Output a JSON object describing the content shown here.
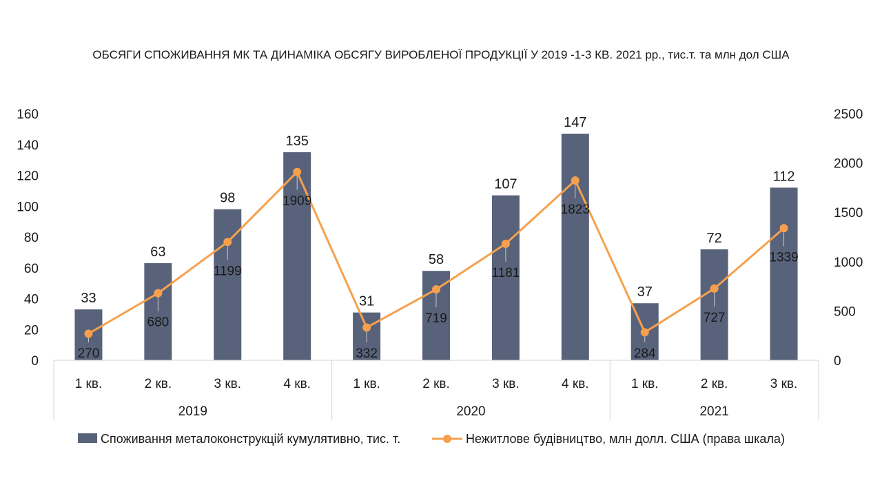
{
  "chart_data": {
    "type": "bar+line",
    "title": "ОБСЯГИ СПОЖИВАННЯ МК ТА ДИНАМІКА ОБСЯГУ ВИРОБЛЕНОЇ ПРОДУКЦІЇ У 2019 -1-3 КВ. 2021 рр., тис.т. та млн дол США",
    "categories": [
      "1 кв.",
      "2 кв.",
      "3 кв.",
      "4 кв.",
      "1 кв.",
      "2 кв.",
      "3 кв.",
      "4 кв.",
      "1 кв.",
      "2 кв.",
      "3 кв."
    ],
    "groups": [
      {
        "label": "2019",
        "count": 4
      },
      {
        "label": "2020",
        "count": 4
      },
      {
        "label": "2021",
        "count": 3
      }
    ],
    "series": [
      {
        "name": "Споживання металоконструкцій кумулятивно, тис. т.",
        "type": "bar",
        "axis": "left",
        "color": "#58627a",
        "values": [
          33,
          63,
          98,
          135,
          31,
          58,
          107,
          147,
          37,
          72,
          112
        ]
      },
      {
        "name": "Нежитлове будівництво, млн долл. США (права шкала)",
        "type": "line",
        "axis": "right",
        "color": "#f6a04d",
        "values": [
          270,
          680,
          1199,
          1909,
          332,
          719,
          1181,
          1823,
          284,
          727,
          1339
        ]
      }
    ],
    "y_left": {
      "min": 0,
      "max": 160,
      "ticks": [
        "0",
        "20",
        "40",
        "60",
        "80",
        "100",
        "120",
        "140",
        "160"
      ]
    },
    "y_right": {
      "min": 0,
      "max": 2500,
      "ticks": [
        "0",
        "500",
        "1000",
        "1500",
        "2000",
        "2500"
      ]
    },
    "legend_position": "bottom",
    "grid": false
  }
}
